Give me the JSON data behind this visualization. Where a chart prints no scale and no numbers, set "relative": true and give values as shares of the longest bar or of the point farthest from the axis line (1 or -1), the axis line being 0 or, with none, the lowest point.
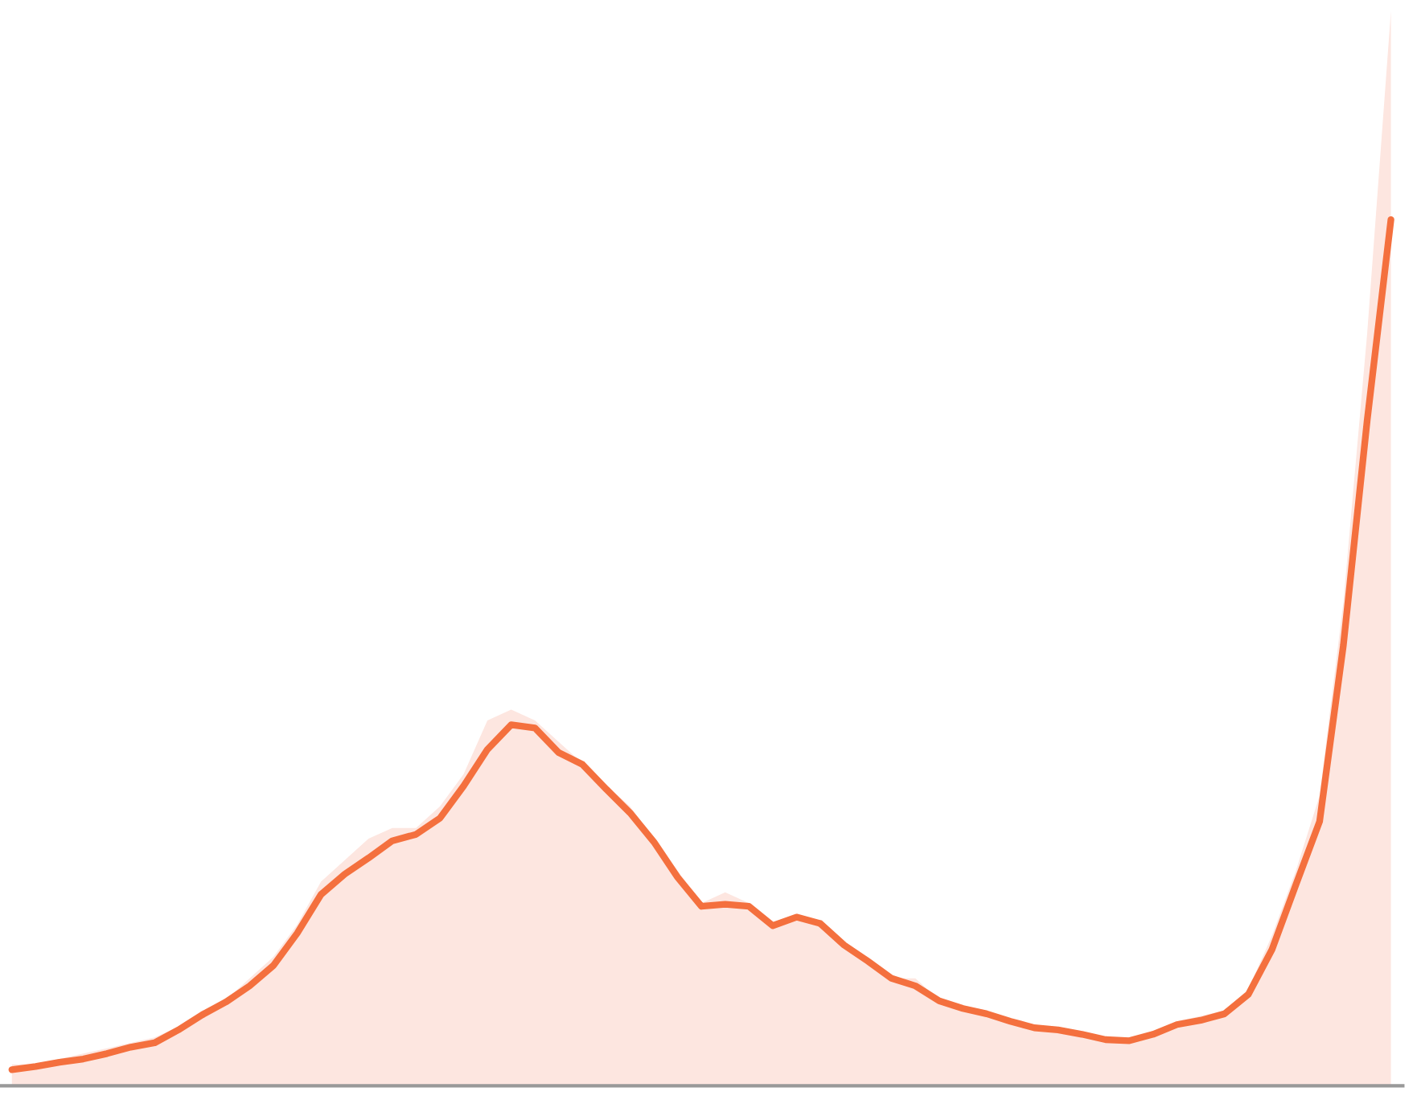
{
  "chart_data": {
    "type": "line",
    "relative": true,
    "legend": false,
    "grid": false,
    "categories": [
      null,
      null,
      null,
      null,
      null,
      null,
      null,
      null,
      null,
      null,
      null,
      null,
      null,
      null,
      null,
      null,
      null,
      null,
      null,
      null,
      null,
      null,
      null,
      null,
      null,
      null,
      null,
      null,
      null,
      null,
      null,
      null,
      null,
      null,
      null,
      null,
      null,
      null,
      null,
      null,
      null,
      null,
      null,
      null,
      null,
      null,
      null,
      null,
      null,
      null,
      null,
      null,
      null,
      null,
      null,
      null,
      null,
      null,
      null
    ],
    "series": [
      {
        "type": "area",
        "color": "#fde6e0",
        "values": [
          0.02,
          0.02,
          0.025,
          0.03,
          0.035,
          0.04,
          0.045,
          0.055,
          0.07,
          0.08,
          0.1,
          0.12,
          0.15,
          0.19,
          0.21,
          0.23,
          0.24,
          0.24,
          0.26,
          0.29,
          0.34,
          0.35,
          0.34,
          0.32,
          0.3,
          0.28,
          0.26,
          0.23,
          0.2,
          0.17,
          0.18,
          0.17,
          0.15,
          0.16,
          0.15,
          0.13,
          0.12,
          0.1,
          0.1,
          0.08,
          0.075,
          0.07,
          0.06,
          0.055,
          0.055,
          0.05,
          0.045,
          0.045,
          0.05,
          0.06,
          0.065,
          0.07,
          0.09,
          0.14,
          0.2,
          0.27,
          0.45,
          0.7,
          1.0
        ]
      },
      {
        "color": "#f4703e",
        "values": [
          0.015,
          0.018,
          0.022,
          0.025,
          0.03,
          0.036,
          0.04,
          0.052,
          0.066,
          0.078,
          0.093,
          0.112,
          0.142,
          0.178,
          0.197,
          0.212,
          0.228,
          0.234,
          0.249,
          0.279,
          0.313,
          0.336,
          0.333,
          0.31,
          0.299,
          0.276,
          0.254,
          0.227,
          0.194,
          0.167,
          0.169,
          0.167,
          0.149,
          0.157,
          0.151,
          0.131,
          0.116,
          0.1,
          0.093,
          0.079,
          0.072,
          0.067,
          0.06,
          0.054,
          0.052,
          0.048,
          0.043,
          0.042,
          0.048,
          0.057,
          0.061,
          0.067,
          0.085,
          0.127,
          0.187,
          0.246,
          0.41,
          0.619,
          0.806
        ]
      }
    ]
  }
}
